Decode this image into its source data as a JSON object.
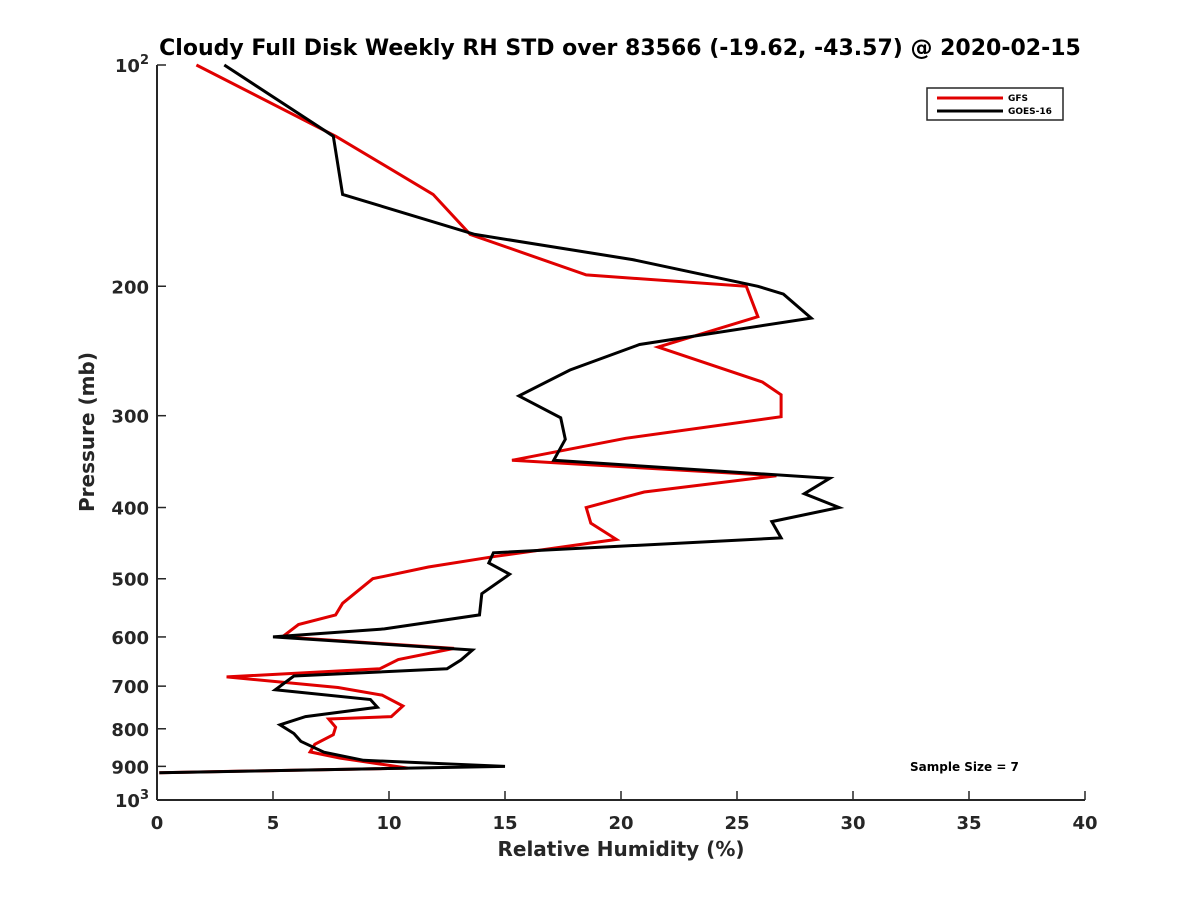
{
  "chart_data": {
    "type": "line",
    "title": "Cloudy Full Disk Weekly RH STD over 83566 (-19.62, -43.57) @ 2020-02-15",
    "xlabel": "Relative Humidity (%)",
    "ylabel": "Pressure (mb)",
    "xlim": [
      0,
      40
    ],
    "ylim": [
      100,
      1000
    ],
    "y_scale": "log",
    "y_reversed": true,
    "x_ticks": [
      "0",
      "5",
      "10",
      "15",
      "20",
      "25",
      "30",
      "35",
      "40"
    ],
    "x_tick_values": [
      0,
      5,
      10,
      15,
      20,
      25,
      30,
      35,
      40
    ],
    "y_ticks": [
      {
        "value": 100,
        "base": "10",
        "exp": "2"
      },
      {
        "value": 200,
        "label": "200"
      },
      {
        "value": 300,
        "label": "300"
      },
      {
        "value": 400,
        "label": "400"
      },
      {
        "value": 500,
        "label": "500"
      },
      {
        "value": 600,
        "label": "600"
      },
      {
        "value": 700,
        "label": "700"
      },
      {
        "value": 800,
        "label": "800"
      },
      {
        "value": 900,
        "label": "900"
      },
      {
        "value": 1000,
        "base": "10",
        "exp": "3"
      }
    ],
    "legend_position": "top-right",
    "annotation": "Sample Size = 7",
    "series": [
      {
        "name": "GFS",
        "color": "#e00000",
        "points": [
          [
            1.7,
            100
          ],
          [
            7.7,
            125
          ],
          [
            11.9,
            150
          ],
          [
            13.5,
            170
          ],
          [
            18.5,
            193
          ],
          [
            25.4,
            200
          ],
          [
            25.9,
            220
          ],
          [
            21.6,
            242
          ],
          [
            26.1,
            270
          ],
          [
            26.9,
            281
          ],
          [
            26.9,
            301
          ],
          [
            20.2,
            322
          ],
          [
            15.3,
            345
          ],
          [
            26.7,
            362
          ],
          [
            21.0,
            381
          ],
          [
            18.5,
            400
          ],
          [
            18.7,
            420
          ],
          [
            19.8,
            442
          ],
          [
            14.6,
            466
          ],
          [
            11.7,
            482
          ],
          [
            9.3,
            500
          ],
          [
            8.0,
            540
          ],
          [
            7.7,
            560
          ],
          [
            6.1,
            577
          ],
          [
            5.4,
            600
          ],
          [
            12.8,
            622
          ],
          [
            10.4,
            644
          ],
          [
            9.6,
            663
          ],
          [
            3.0,
            680
          ],
          [
            7.8,
            703
          ],
          [
            9.7,
            720
          ],
          [
            10.6,
            745
          ],
          [
            10.1,
            770
          ],
          [
            7.4,
            776
          ],
          [
            7.7,
            796
          ],
          [
            7.6,
            815
          ],
          [
            6.8,
            840
          ],
          [
            6.6,
            860
          ],
          [
            7.9,
            877
          ],
          [
            10.8,
            905
          ],
          [
            0.1,
            918
          ]
        ]
      },
      {
        "name": "GOES-16",
        "color": "#000000",
        "points": [
          [
            2.9,
            100
          ],
          [
            7.6,
            125
          ],
          [
            8.0,
            150
          ],
          [
            13.7,
            170
          ],
          [
            20.5,
            184
          ],
          [
            25.9,
            200
          ],
          [
            27.0,
            205
          ],
          [
            28.2,
            221
          ],
          [
            20.8,
            240
          ],
          [
            17.8,
            260
          ],
          [
            15.6,
            282
          ],
          [
            17.4,
            302
          ],
          [
            17.6,
            323
          ],
          [
            17.1,
            345
          ],
          [
            29.0,
            365
          ],
          [
            27.9,
            383
          ],
          [
            29.4,
            400
          ],
          [
            26.5,
            418
          ],
          [
            26.9,
            440
          ],
          [
            14.5,
            461
          ],
          [
            14.3,
            476
          ],
          [
            15.2,
            493
          ],
          [
            14.0,
            524
          ],
          [
            13.9,
            560
          ],
          [
            9.8,
            585
          ],
          [
            5.0,
            600
          ],
          [
            13.6,
            625
          ],
          [
            13.1,
            645
          ],
          [
            12.5,
            663
          ],
          [
            5.9,
            678
          ],
          [
            5.1,
            708
          ],
          [
            9.2,
            730
          ],
          [
            9.5,
            748
          ],
          [
            6.4,
            770
          ],
          [
            5.3,
            790
          ],
          [
            5.9,
            812
          ],
          [
            6.2,
            832
          ],
          [
            7.2,
            861
          ],
          [
            8.9,
            883
          ],
          [
            15.0,
            900
          ],
          [
            0.1,
            918
          ]
        ]
      }
    ]
  }
}
